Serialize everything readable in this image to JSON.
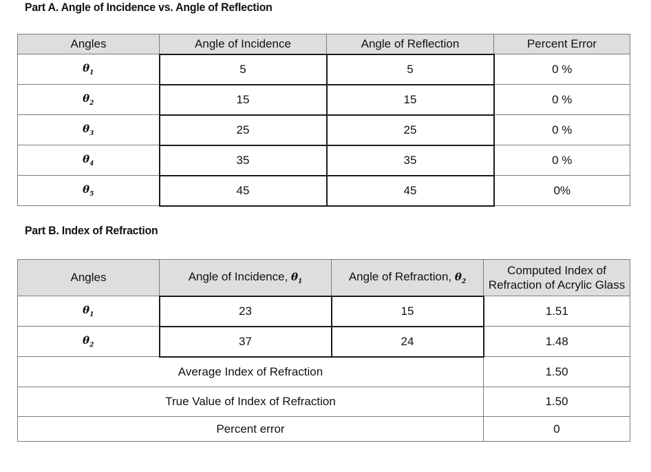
{
  "partA": {
    "title": "Part A.  Angle of Incidence vs. Angle of Reflection",
    "headers": [
      "Angles",
      "Angle of Incidence",
      "Angle of Reflection",
      "Percent Error"
    ],
    "rows": [
      {
        "sym": "θ",
        "sub": "1",
        "incidence": "5",
        "reflection": "5",
        "error": "0 %"
      },
      {
        "sym": "θ",
        "sub": "2",
        "incidence": "15",
        "reflection": "15",
        "error": "0 %"
      },
      {
        "sym": "θ",
        "sub": "3",
        "incidence": "25",
        "reflection": "25",
        "error": "0 %"
      },
      {
        "sym": "θ",
        "sub": "4",
        "incidence": "35",
        "reflection": "35",
        "error": "0 %"
      },
      {
        "sym": "θ",
        "sub": "5",
        "incidence": "45",
        "reflection": "45",
        "error": "0%"
      }
    ]
  },
  "partB": {
    "title": "Part B. Index of Refraction",
    "headers": {
      "angles": "Angles",
      "incidence": "Angle of Incidence, ",
      "incidence_sym": "θ",
      "incidence_sub": "1",
      "refraction": "Angle of Refraction, ",
      "refraction_sym": "θ",
      "refraction_sub": "2",
      "computed": "Computed Index of Refraction of Acrylic Glass"
    },
    "rows": [
      {
        "sym": "θ",
        "sub": "1",
        "incidence": "23",
        "refraction": "15",
        "index": "1.51"
      },
      {
        "sym": "θ",
        "sub": "2",
        "incidence": "37",
        "refraction": "24",
        "index": "1.48"
      }
    ],
    "summary": [
      {
        "label": "Average Index of Refraction",
        "value": "1.50"
      },
      {
        "label": "True Value of Index of Refraction",
        "value": "1.50"
      },
      {
        "label": "Percent error",
        "value": "0"
      }
    ]
  }
}
